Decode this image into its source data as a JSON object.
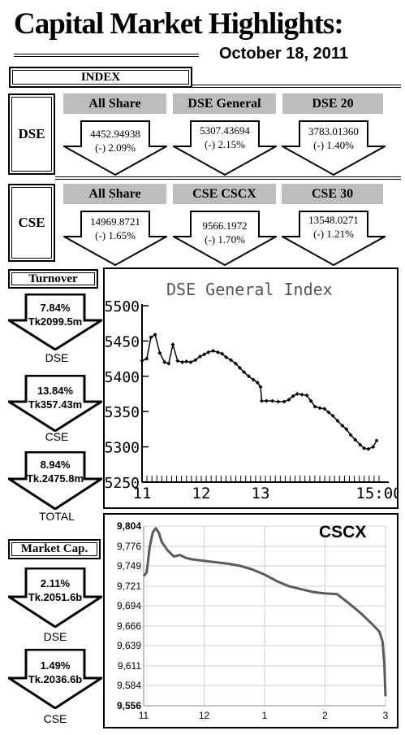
{
  "header": {
    "title": "Capital Market Highlights:",
    "date": "October 18, 2011"
  },
  "index_label": "INDEX",
  "dse": {
    "label": "DSE",
    "items": [
      {
        "name": "All Share",
        "value": "4452.94938",
        "change": "(-) 2.09%"
      },
      {
        "name": "DSE General",
        "value": "5307.43694",
        "change": "(-) 2.15%"
      },
      {
        "name": "DSE 20",
        "value": "3783.01360",
        "change": "(-) 1.40%"
      }
    ]
  },
  "cse": {
    "label": "CSE",
    "items": [
      {
        "name": "All Share",
        "value": "14969.8721",
        "change": "(-) 1.65%"
      },
      {
        "name": "CSE CSCX",
        "value": "9566.1972",
        "change": "(-) 1.70%"
      },
      {
        "name": "CSE 30",
        "value": "13548.0271",
        "change": "(-) 1.21%"
      }
    ]
  },
  "turnover": {
    "label": "Turnover",
    "items": [
      {
        "pct": "7.84%",
        "amount": "Tk2099.5m",
        "caption": "DSE"
      },
      {
        "pct": "13.84%",
        "amount": "Tk357.43m",
        "caption": "CSE"
      },
      {
        "pct": "8.94%",
        "amount": "Tk.2475.8m",
        "caption": "TOTAL"
      }
    ]
  },
  "market_cap": {
    "label": "Market Cap.",
    "items": [
      {
        "pct": "2.11%",
        "amount": "Tk.2051.6b",
        "caption": "DSE"
      },
      {
        "pct": "1.49%",
        "amount": "Tk.2036.6b",
        "caption": "CSE"
      }
    ]
  },
  "chart_data": [
    {
      "type": "line",
      "title": "DSE General Index",
      "ylim": [
        5250,
        5500
      ],
      "yticks": [
        "5500",
        "5450",
        "5400",
        "5350",
        "5300",
        "5250"
      ],
      "xticks": [
        "11",
        "12",
        "13",
        "15:00"
      ],
      "xlim": [
        11,
        15
      ],
      "xtick_pos": [
        11,
        12,
        13,
        15
      ],
      "grid": false,
      "series": [
        {
          "x": [
            11.0,
            11.08,
            11.15,
            11.22,
            11.3,
            11.38,
            11.45,
            11.52,
            11.6,
            11.68,
            11.75,
            11.82,
            11.9,
            11.98,
            12.05,
            12.12,
            12.2,
            12.28,
            12.35,
            12.42,
            12.5,
            12.58,
            12.65,
            12.72,
            12.8,
            12.88,
            12.95,
            13.0,
            13.02,
            13.1,
            13.2,
            13.3,
            13.4,
            13.48,
            13.55,
            13.62,
            13.7,
            13.78,
            13.85,
            13.92,
            14.0,
            14.08,
            14.15,
            14.22,
            14.3,
            14.38,
            14.45,
            14.52,
            14.6,
            14.68,
            14.75,
            14.82,
            14.9,
            14.96
          ],
          "y": [
            5422,
            5425,
            5455,
            5459,
            5433,
            5420,
            5418,
            5445,
            5422,
            5420,
            5421,
            5420,
            5423,
            5428,
            5431,
            5434,
            5436,
            5434,
            5432,
            5427,
            5423,
            5418,
            5412,
            5406,
            5400,
            5395,
            5391,
            5385,
            5365,
            5365,
            5365,
            5364,
            5364,
            5367,
            5372,
            5375,
            5374,
            5373,
            5365,
            5357,
            5355,
            5354,
            5349,
            5344,
            5337,
            5330,
            5325,
            5317,
            5310,
            5303,
            5298,
            5297,
            5300,
            5309
          ]
        }
      ]
    },
    {
      "type": "line",
      "title": "CSCX",
      "ylim": [
        9556,
        9804
      ],
      "yticks": [
        "9,804",
        "9,776",
        "9,749",
        "9,721",
        "9,694",
        "9,666",
        "9,639",
        "9,611",
        "9,584",
        "9,556"
      ],
      "xticks": [
        "11",
        "12",
        "1",
        "2",
        "3"
      ],
      "xlim": [
        11,
        15
      ],
      "xtick_pos": [
        11,
        12,
        13,
        14,
        15
      ],
      "grid": true,
      "series": [
        {
          "x": [
            11.0,
            11.05,
            11.1,
            11.15,
            11.2,
            11.25,
            11.3,
            11.4,
            11.5,
            11.6,
            11.7,
            11.8,
            11.9,
            12.0,
            12.2,
            12.4,
            12.6,
            12.8,
            13.0,
            13.2,
            13.4,
            13.6,
            13.8,
            14.0,
            14.2,
            14.4,
            14.6,
            14.8,
            14.9,
            14.95,
            14.98,
            15.0
          ],
          "y": [
            9735,
            9740,
            9775,
            9795,
            9801,
            9795,
            9782,
            9770,
            9762,
            9764,
            9760,
            9758,
            9757,
            9756,
            9754,
            9752,
            9749,
            9744,
            9737,
            9728,
            9721,
            9717,
            9713,
            9711,
            9710,
            9697,
            9683,
            9667,
            9658,
            9645,
            9615,
            9569
          ]
        }
      ]
    }
  ]
}
